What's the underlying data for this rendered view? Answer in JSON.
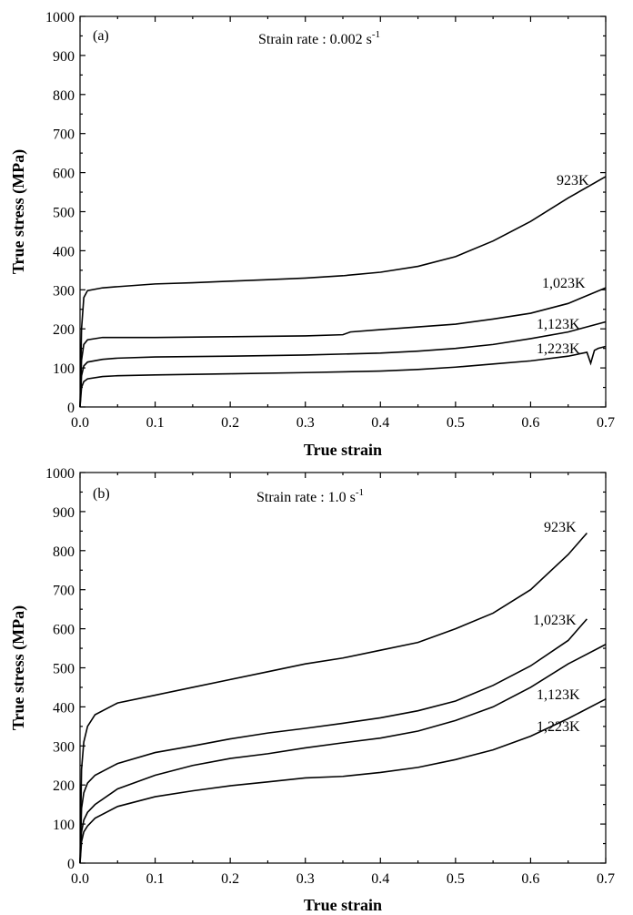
{
  "chart_data": [
    {
      "type": "line",
      "panel_label": "(a)",
      "annotation_prefix": "Strain rate : 0.002 s",
      "annotation_superscript": "-1",
      "xlabel": "True strain",
      "ylabel": "True stress (MPa)",
      "xlim": [
        0,
        0.7
      ],
      "ylim": [
        0,
        1000
      ],
      "xticks": [
        0.0,
        0.1,
        0.2,
        0.3,
        0.4,
        0.5,
        0.6,
        0.7
      ],
      "xtick_labels": [
        "0.0",
        "0.1",
        "0.2",
        "0.3",
        "0.4",
        "0.5",
        "0.6",
        "0.7"
      ],
      "yticks": [
        0,
        100,
        200,
        300,
        400,
        500,
        600,
        700,
        800,
        900,
        1000
      ],
      "ytick_labels": [
        "0",
        "100",
        "200",
        "300",
        "400",
        "500",
        "600",
        "700",
        "800",
        "900",
        "1000"
      ],
      "grid": false,
      "series": [
        {
          "name": "923K",
          "points": [
            [
              0,
              0
            ],
            [
              0.002,
              200
            ],
            [
              0.005,
              280
            ],
            [
              0.01,
              298
            ],
            [
              0.03,
              305
            ],
            [
              0.05,
              308
            ],
            [
              0.1,
              315
            ],
            [
              0.15,
              318
            ],
            [
              0.2,
              322
            ],
            [
              0.25,
              326
            ],
            [
              0.3,
              330
            ],
            [
              0.35,
              336
            ],
            [
              0.4,
              345
            ],
            [
              0.45,
              360
            ],
            [
              0.5,
              385
            ],
            [
              0.55,
              425
            ],
            [
              0.6,
              475
            ],
            [
              0.65,
              535
            ],
            [
              0.7,
              590
            ]
          ]
        },
        {
          "name": "1,023K",
          "points": [
            [
              0,
              0
            ],
            [
              0.002,
              120
            ],
            [
              0.005,
              160
            ],
            [
              0.01,
              172
            ],
            [
              0.03,
              178
            ],
            [
              0.05,
              178
            ],
            [
              0.1,
              178
            ],
            [
              0.2,
              180
            ],
            [
              0.3,
              182
            ],
            [
              0.35,
              185
            ],
            [
              0.36,
              192
            ],
            [
              0.4,
              198
            ],
            [
              0.45,
              205
            ],
            [
              0.5,
              212
            ],
            [
              0.55,
              225
            ],
            [
              0.6,
              240
            ],
            [
              0.65,
              265
            ],
            [
              0.7,
              305
            ]
          ]
        },
        {
          "name": "1,123K",
          "points": [
            [
              0,
              0
            ],
            [
              0.002,
              80
            ],
            [
              0.005,
              105
            ],
            [
              0.01,
              115
            ],
            [
              0.03,
              122
            ],
            [
              0.05,
              125
            ],
            [
              0.1,
              128
            ],
            [
              0.2,
              130
            ],
            [
              0.3,
              133
            ],
            [
              0.4,
              138
            ],
            [
              0.45,
              143
            ],
            [
              0.5,
              150
            ],
            [
              0.55,
              160
            ],
            [
              0.6,
              175
            ],
            [
              0.65,
              192
            ],
            [
              0.7,
              218
            ]
          ]
        },
        {
          "name": "1,223K",
          "points": [
            [
              0,
              0
            ],
            [
              0.002,
              50
            ],
            [
              0.005,
              65
            ],
            [
              0.01,
              72
            ],
            [
              0.03,
              78
            ],
            [
              0.05,
              80
            ],
            [
              0.1,
              82
            ],
            [
              0.2,
              85
            ],
            [
              0.3,
              88
            ],
            [
              0.4,
              92
            ],
            [
              0.45,
              96
            ],
            [
              0.5,
              102
            ],
            [
              0.55,
              110
            ],
            [
              0.6,
              118
            ],
            [
              0.65,
              130
            ],
            [
              0.675,
              140
            ],
            [
              0.68,
              112
            ],
            [
              0.685,
              145
            ],
            [
              0.69,
              150
            ],
            [
              0.7,
              155
            ]
          ]
        }
      ]
    },
    {
      "type": "line",
      "panel_label": "(b)",
      "annotation_prefix": "Strain rate : 1.0 s",
      "annotation_superscript": "-1",
      "xlabel": "True strain",
      "ylabel": "True stress (MPa)",
      "xlim": [
        0,
        0.7
      ],
      "ylim": [
        0,
        1000
      ],
      "xticks": [
        0.0,
        0.1,
        0.2,
        0.3,
        0.4,
        0.5,
        0.6,
        0.7
      ],
      "xtick_labels": [
        "0.0",
        "0.1",
        "0.2",
        "0.3",
        "0.4",
        "0.5",
        "0.6",
        "0.7"
      ],
      "yticks": [
        0,
        100,
        200,
        300,
        400,
        500,
        600,
        700,
        800,
        900,
        1000
      ],
      "ytick_labels": [
        "0",
        "100",
        "200",
        "300",
        "400",
        "500",
        "600",
        "700",
        "800",
        "900",
        "1000"
      ],
      "grid": false,
      "series": [
        {
          "name": "923K",
          "points": [
            [
              0,
              0
            ],
            [
              0.002,
              240
            ],
            [
              0.005,
              310
            ],
            [
              0.01,
              350
            ],
            [
              0.02,
              380
            ],
            [
              0.05,
              410
            ],
            [
              0.1,
              430
            ],
            [
              0.15,
              450
            ],
            [
              0.2,
              470
            ],
            [
              0.25,
              490
            ],
            [
              0.3,
              510
            ],
            [
              0.35,
              525
            ],
            [
              0.4,
              545
            ],
            [
              0.45,
              565
            ],
            [
              0.5,
              600
            ],
            [
              0.55,
              640
            ],
            [
              0.6,
              700
            ],
            [
              0.65,
              790
            ],
            [
              0.675,
              845
            ]
          ]
        },
        {
          "name": "1,023K",
          "points": [
            [
              0,
              0
            ],
            [
              0.002,
              140
            ],
            [
              0.005,
              180
            ],
            [
              0.01,
              205
            ],
            [
              0.02,
              225
            ],
            [
              0.05,
              255
            ],
            [
              0.1,
              283
            ],
            [
              0.15,
              300
            ],
            [
              0.2,
              318
            ],
            [
              0.25,
              333
            ],
            [
              0.3,
              345
            ],
            [
              0.35,
              358
            ],
            [
              0.4,
              372
            ],
            [
              0.45,
              390
            ],
            [
              0.5,
              415
            ],
            [
              0.55,
              455
            ],
            [
              0.6,
              505
            ],
            [
              0.65,
              570
            ],
            [
              0.675,
              625
            ]
          ]
        },
        {
          "name": "1,123K",
          "points": [
            [
              0,
              0
            ],
            [
              0.002,
              80
            ],
            [
              0.005,
              110
            ],
            [
              0.01,
              130
            ],
            [
              0.02,
              150
            ],
            [
              0.05,
              190
            ],
            [
              0.1,
              225
            ],
            [
              0.15,
              250
            ],
            [
              0.2,
              268
            ],
            [
              0.25,
              280
            ],
            [
              0.3,
              295
            ],
            [
              0.35,
              308
            ],
            [
              0.4,
              320
            ],
            [
              0.45,
              338
            ],
            [
              0.5,
              365
            ],
            [
              0.55,
              400
            ],
            [
              0.6,
              450
            ],
            [
              0.65,
              510
            ],
            [
              0.7,
              560
            ]
          ]
        },
        {
          "name": "1,223K",
          "points": [
            [
              0,
              0
            ],
            [
              0.002,
              55
            ],
            [
              0.005,
              80
            ],
            [
              0.01,
              95
            ],
            [
              0.02,
              115
            ],
            [
              0.05,
              145
            ],
            [
              0.1,
              170
            ],
            [
              0.15,
              185
            ],
            [
              0.2,
              198
            ],
            [
              0.25,
              208
            ],
            [
              0.3,
              218
            ],
            [
              0.35,
              222
            ],
            [
              0.4,
              232
            ],
            [
              0.45,
              245
            ],
            [
              0.5,
              265
            ],
            [
              0.55,
              290
            ],
            [
              0.6,
              325
            ],
            [
              0.65,
              370
            ],
            [
              0.7,
              420
            ]
          ]
        }
      ]
    }
  ]
}
